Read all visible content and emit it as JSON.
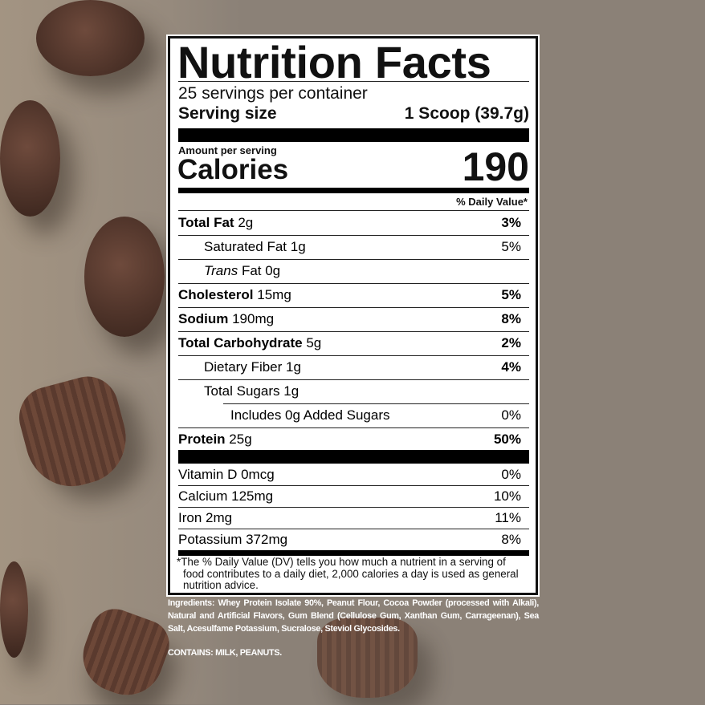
{
  "label": {
    "title": "Nutrition Facts",
    "servings_per_container": "25 servings per container",
    "serving_size_label": "Serving size",
    "serving_size_value": "1 Scoop (39.7g)",
    "amount_per_serving": "Amount per serving",
    "calories_label": "Calories",
    "calories_value": "190",
    "daily_value_header": "% Daily Value*",
    "nutrients": [
      {
        "name": "Total Fat",
        "amount": "2g",
        "dv": "3%"
      },
      {
        "name": "Saturated Fat",
        "amount": "1g",
        "dv": "5%"
      },
      {
        "name": "Trans",
        "amount": "Fat 0g",
        "dv": ""
      },
      {
        "name": "Cholesterol",
        "amount": "15mg",
        "dv": "5%"
      },
      {
        "name": "Sodium",
        "amount": "190mg",
        "dv": "8%"
      },
      {
        "name": "Total Carbohydrate",
        "amount": "5g",
        "dv": "2%"
      },
      {
        "name": "Dietary Fiber",
        "amount": "1g",
        "dv": "4%"
      },
      {
        "name": "Total Sugars",
        "amount": "1g",
        "dv": ""
      },
      {
        "name": "Includes 0g Added Sugars",
        "amount": "",
        "dv": "0%"
      },
      {
        "name": "Protein",
        "amount": "25g",
        "dv": "50%"
      }
    ],
    "vitamins": [
      {
        "name": "Vitamin D 0mcg",
        "dv": "0%"
      },
      {
        "name": "Calcium 125mg",
        "dv": "10%"
      },
      {
        "name": "Iron 2mg",
        "dv": "11%"
      },
      {
        "name": "Potassium 372mg",
        "dv": "8%"
      }
    ],
    "footnote": "*The % Daily Value (DV) tells you how much a nutrient in a serving of food contributes to a daily diet, 2,000 calories a day is used as general nutrition advice."
  },
  "ingredients": "Ingredients: Whey Protein Isolate 90%, Peanut Flour, Cocoa Powder (processed with Alkali), Natural and Artificial Flavors, Gum Blend (Cellulose Gum, Xanthan Gum, Carrageenan), Sea Salt, Acesulfame Potassium, Sucralose, Steviol Glycosides.",
  "contains": "CONTAINS: MILK, PEANUTS.",
  "colors": {
    "background": "#8b8177",
    "cup": "#4e3329"
  }
}
